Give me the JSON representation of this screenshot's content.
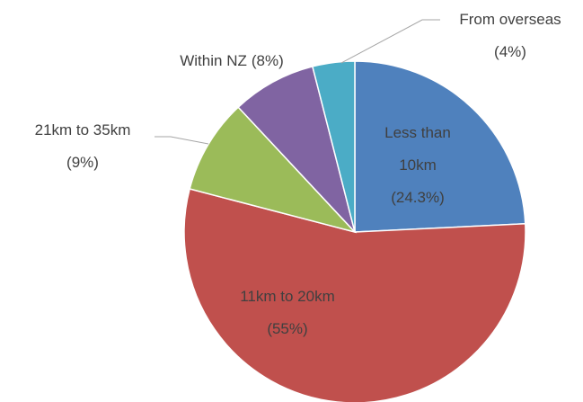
{
  "chart_data": {
    "type": "pie",
    "categories": [
      "Less than 10km",
      "11km to 20km",
      "21km to 35km",
      "Within NZ",
      "From overseas"
    ],
    "values": [
      24.3,
      55,
      9,
      8,
      4
    ],
    "value_labels": [
      "(24.3%)",
      "(55%)",
      "(9%)",
      "(8%)",
      "(4%)"
    ],
    "colors": [
      "#4f81bd",
      "#c0504d",
      "#9bbb59",
      "#8064a2",
      "#4bacc6"
    ]
  }
}
